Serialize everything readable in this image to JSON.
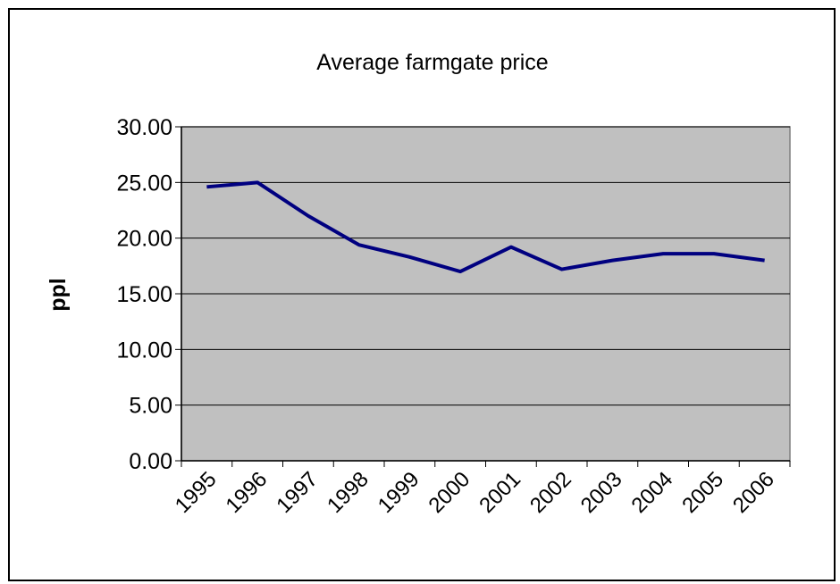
{
  "chart_data": {
    "type": "line",
    "title": "Average farmgate price",
    "y_label": "ppl",
    "categories": [
      "1995",
      "1996",
      "1997",
      "1998",
      "1999",
      "2000",
      "2001",
      "2002",
      "2003",
      "2004",
      "2005",
      "2006"
    ],
    "series": [
      {
        "name": "Average farmgate price",
        "color": "#000080",
        "values": [
          24.6,
          25.0,
          22.0,
          19.4,
          18.3,
          17.0,
          19.2,
          17.2,
          18.0,
          18.6,
          18.6,
          18.0
        ]
      }
    ],
    "ylim": [
      0,
      30
    ],
    "yticks": [
      {
        "value": 0,
        "label": "0.00"
      },
      {
        "value": 5,
        "label": "5.00"
      },
      {
        "value": 10,
        "label": "10.00"
      },
      {
        "value": 15,
        "label": "15.00"
      },
      {
        "value": 20,
        "label": "20.00"
      },
      {
        "value": 25,
        "label": "25.00"
      },
      {
        "value": 30,
        "label": "30.00"
      }
    ],
    "grid": true,
    "plot_background": "#c0c0c0"
  }
}
